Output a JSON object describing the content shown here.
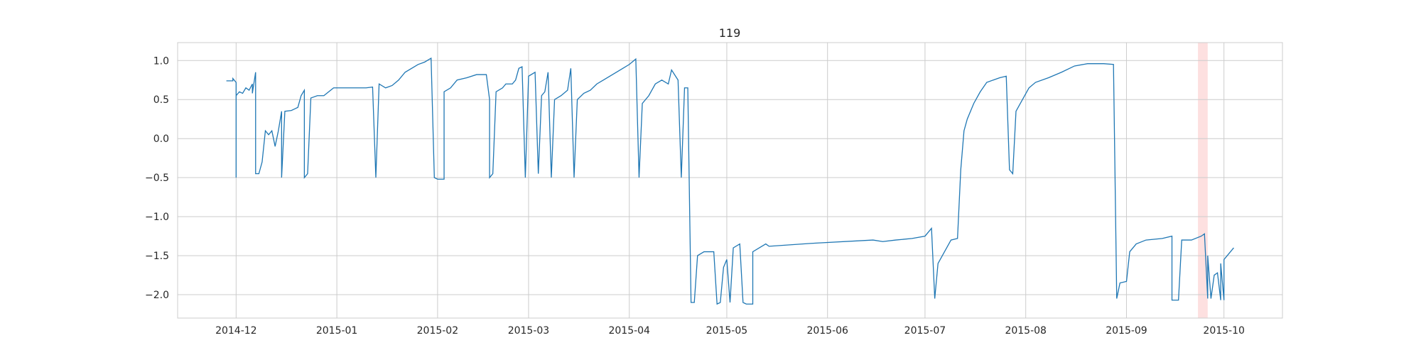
{
  "chart_data": {
    "type": "line",
    "title": "119",
    "xlabel": "",
    "ylabel": "",
    "xlim": [
      "2014-11-13",
      "2015-10-19"
    ],
    "ylim": [
      -2.3,
      1.23
    ],
    "grid": true,
    "x_ticks": [
      "2014-12",
      "2015-01",
      "2015-02",
      "2015-03",
      "2015-04",
      "2015-05",
      "2015-06",
      "2015-07",
      "2015-08",
      "2015-09",
      "2015-10"
    ],
    "y_ticks": [
      1.0,
      0.5,
      0.0,
      -0.5,
      -1.0,
      -1.5,
      -2.0
    ],
    "y_tick_labels": [
      "1.0",
      "0.5",
      "0.0",
      "−0.5",
      "−1.0",
      "−1.5",
      "−2.0"
    ],
    "highlight_region": {
      "start": "2015-09-23",
      "end": "2015-09-26",
      "color": "#fde0e0"
    },
    "series": [
      {
        "color": "#1f77b4",
        "points": [
          [
            "2014-11-28",
            0.74
          ],
          [
            "2014-11-30",
            0.74
          ],
          [
            "2014-11-30",
            0.77
          ],
          [
            "2014-12-01",
            0.72
          ],
          [
            "2014-12-01",
            -0.5
          ],
          [
            "2014-12-01",
            0.55
          ],
          [
            "2014-12-02",
            0.6
          ],
          [
            "2014-12-03",
            0.58
          ],
          [
            "2014-12-04",
            0.65
          ],
          [
            "2014-12-05",
            0.62
          ],
          [
            "2014-12-06",
            0.7
          ],
          [
            "2014-12-06",
            0.58
          ],
          [
            "2014-12-07",
            0.85
          ],
          [
            "2014-12-07",
            -0.45
          ],
          [
            "2014-12-08",
            -0.45
          ],
          [
            "2014-12-09",
            -0.3
          ],
          [
            "2014-12-10",
            0.1
          ],
          [
            "2014-12-11",
            0.05
          ],
          [
            "2014-12-12",
            0.1
          ],
          [
            "2014-12-13",
            -0.1
          ],
          [
            "2014-12-14",
            0.1
          ],
          [
            "2014-12-15",
            0.35
          ],
          [
            "2014-12-15",
            -0.5
          ],
          [
            "2014-12-16",
            0.35
          ],
          [
            "2014-12-18",
            0.36
          ],
          [
            "2014-12-19",
            0.38
          ],
          [
            "2014-12-20",
            0.4
          ],
          [
            "2014-12-21",
            0.55
          ],
          [
            "2014-12-22",
            0.62
          ],
          [
            "2014-12-22",
            -0.5
          ],
          [
            "2014-12-23",
            -0.45
          ],
          [
            "2014-12-24",
            0.52
          ],
          [
            "2014-12-26",
            0.55
          ],
          [
            "2014-12-28",
            0.55
          ],
          [
            "2014-12-31",
            0.65
          ],
          [
            "2015-01-05",
            0.65
          ],
          [
            "2015-01-10",
            0.65
          ],
          [
            "2015-01-12",
            0.66
          ],
          [
            "2015-01-13",
            -0.5
          ],
          [
            "2015-01-14",
            0.7
          ],
          [
            "2015-01-16",
            0.65
          ],
          [
            "2015-01-18",
            0.68
          ],
          [
            "2015-01-20",
            0.75
          ],
          [
            "2015-01-22",
            0.85
          ],
          [
            "2015-01-24",
            0.9
          ],
          [
            "2015-01-26",
            0.95
          ],
          [
            "2015-01-28",
            0.98
          ],
          [
            "2015-01-30",
            1.03
          ],
          [
            "2015-01-31",
            -0.5
          ],
          [
            "2015-02-01",
            -0.52
          ],
          [
            "2015-02-03",
            -0.52
          ],
          [
            "2015-02-03",
            0.6
          ],
          [
            "2015-02-05",
            0.65
          ],
          [
            "2015-02-07",
            0.75
          ],
          [
            "2015-02-10",
            0.78
          ],
          [
            "2015-02-13",
            0.82
          ],
          [
            "2015-02-16",
            0.82
          ],
          [
            "2015-02-17",
            0.5
          ],
          [
            "2015-02-17",
            -0.5
          ],
          [
            "2015-02-18",
            -0.45
          ],
          [
            "2015-02-19",
            0.6
          ],
          [
            "2015-02-21",
            0.65
          ],
          [
            "2015-02-22",
            0.7
          ],
          [
            "2015-02-24",
            0.7
          ],
          [
            "2015-02-25",
            0.75
          ],
          [
            "2015-02-26",
            0.9
          ],
          [
            "2015-02-27",
            0.92
          ],
          [
            "2015-02-28",
            -0.5
          ],
          [
            "2015-03-01",
            0.8
          ],
          [
            "2015-03-03",
            0.85
          ],
          [
            "2015-03-04",
            -0.45
          ],
          [
            "2015-03-05",
            0.55
          ],
          [
            "2015-03-06",
            0.6
          ],
          [
            "2015-03-07",
            0.85
          ],
          [
            "2015-03-08",
            -0.5
          ],
          [
            "2015-03-09",
            0.5
          ],
          [
            "2015-03-11",
            0.55
          ],
          [
            "2015-03-13",
            0.62
          ],
          [
            "2015-03-14",
            0.9
          ],
          [
            "2015-03-15",
            -0.5
          ],
          [
            "2015-03-16",
            0.5
          ],
          [
            "2015-03-18",
            0.58
          ],
          [
            "2015-03-20",
            0.62
          ],
          [
            "2015-03-22",
            0.7
          ],
          [
            "2015-03-24",
            0.75
          ],
          [
            "2015-03-26",
            0.8
          ],
          [
            "2015-03-28",
            0.85
          ],
          [
            "2015-03-30",
            0.9
          ],
          [
            "2015-04-01",
            0.95
          ],
          [
            "2015-04-03",
            1.02
          ],
          [
            "2015-04-04",
            -0.5
          ],
          [
            "2015-04-05",
            0.45
          ],
          [
            "2015-04-07",
            0.55
          ],
          [
            "2015-04-09",
            0.7
          ],
          [
            "2015-04-11",
            0.75
          ],
          [
            "2015-04-13",
            0.7
          ],
          [
            "2015-04-14",
            0.88
          ],
          [
            "2015-04-16",
            0.75
          ],
          [
            "2015-04-17",
            -0.5
          ],
          [
            "2015-04-18",
            0.65
          ],
          [
            "2015-04-19",
            0.65
          ],
          [
            "2015-04-20",
            -2.1
          ],
          [
            "2015-04-21",
            -2.1
          ],
          [
            "2015-04-22",
            -1.5
          ],
          [
            "2015-04-24",
            -1.45
          ],
          [
            "2015-04-27",
            -1.45
          ],
          [
            "2015-04-28",
            -2.12
          ],
          [
            "2015-04-29",
            -2.1
          ],
          [
            "2015-04-30",
            -1.65
          ],
          [
            "2015-05-01",
            -1.55
          ],
          [
            "2015-05-02",
            -2.1
          ],
          [
            "2015-05-03",
            -1.4
          ],
          [
            "2015-05-05",
            -1.35
          ],
          [
            "2015-05-06",
            -2.1
          ],
          [
            "2015-05-07",
            -2.12
          ],
          [
            "2015-05-09",
            -2.12
          ],
          [
            "2015-05-09",
            -1.45
          ],
          [
            "2015-05-11",
            -1.4
          ],
          [
            "2015-05-13",
            -1.35
          ],
          [
            "2015-05-14",
            -1.38
          ],
          [
            "2015-05-28",
            -1.34
          ],
          [
            "2015-06-15",
            -1.3
          ],
          [
            "2015-06-18",
            -1.32
          ],
          [
            "2015-06-22",
            -1.3
          ],
          [
            "2015-06-27",
            -1.28
          ],
          [
            "2015-07-01",
            -1.25
          ],
          [
            "2015-07-03",
            -1.15
          ],
          [
            "2015-07-04",
            -2.05
          ],
          [
            "2015-07-05",
            -1.6
          ],
          [
            "2015-07-07",
            -1.45
          ],
          [
            "2015-07-09",
            -1.3
          ],
          [
            "2015-07-11",
            -1.28
          ],
          [
            "2015-07-12",
            -0.4
          ],
          [
            "2015-07-13",
            0.1
          ],
          [
            "2015-07-14",
            0.25
          ],
          [
            "2015-07-16",
            0.45
          ],
          [
            "2015-07-18",
            0.6
          ],
          [
            "2015-07-20",
            0.72
          ],
          [
            "2015-07-22",
            0.75
          ],
          [
            "2015-07-24",
            0.78
          ],
          [
            "2015-07-26",
            0.8
          ],
          [
            "2015-07-27",
            -0.4
          ],
          [
            "2015-07-28",
            -0.45
          ],
          [
            "2015-07-29",
            0.35
          ],
          [
            "2015-07-31",
            0.5
          ],
          [
            "2015-08-02",
            0.65
          ],
          [
            "2015-08-04",
            0.72
          ],
          [
            "2015-08-08",
            0.78
          ],
          [
            "2015-08-12",
            0.85
          ],
          [
            "2015-08-16",
            0.93
          ],
          [
            "2015-08-20",
            0.96
          ],
          [
            "2015-08-25",
            0.96
          ],
          [
            "2015-08-28",
            0.95
          ],
          [
            "2015-08-29",
            -2.05
          ],
          [
            "2015-08-30",
            -1.85
          ],
          [
            "2015-09-01",
            -1.83
          ],
          [
            "2015-09-02",
            -1.45
          ],
          [
            "2015-09-04",
            -1.35
          ],
          [
            "2015-09-07",
            -1.3
          ],
          [
            "2015-09-12",
            -1.28
          ],
          [
            "2015-09-15",
            -1.25
          ],
          [
            "2015-09-15",
            -2.07
          ],
          [
            "2015-09-17",
            -2.07
          ],
          [
            "2015-09-18",
            -1.3
          ],
          [
            "2015-09-21",
            -1.3
          ],
          [
            "2015-09-24",
            -1.25
          ],
          [
            "2015-09-25",
            -1.22
          ],
          [
            "2015-09-26",
            -2.05
          ],
          [
            "2015-09-26",
            -1.5
          ],
          [
            "2015-09-27",
            -2.05
          ],
          [
            "2015-09-28",
            -1.75
          ],
          [
            "2015-09-29",
            -1.72
          ],
          [
            "2015-09-30",
            -2.07
          ],
          [
            "2015-09-30",
            -1.6
          ],
          [
            "2015-10-01",
            -2.07
          ],
          [
            "2015-10-01",
            -1.55
          ],
          [
            "2015-10-02",
            -1.5
          ],
          [
            "2015-10-03",
            -1.45
          ],
          [
            "2015-10-04",
            -1.4
          ]
        ]
      }
    ]
  }
}
